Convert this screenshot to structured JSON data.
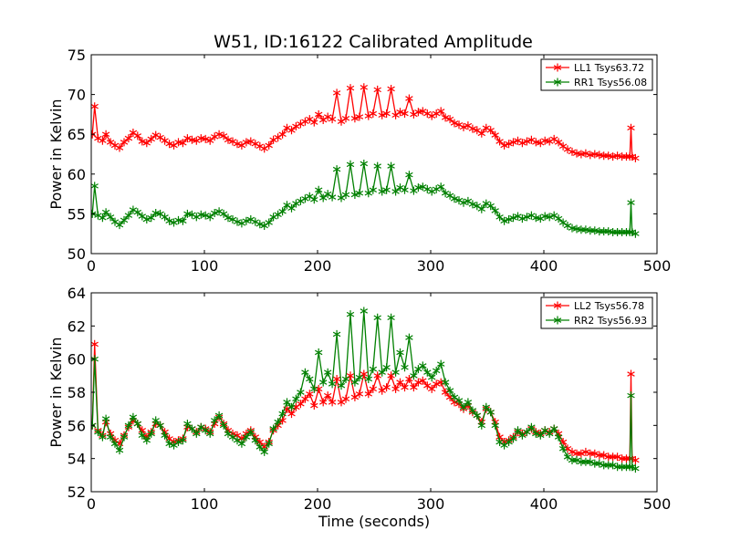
{
  "chart_data": [
    {
      "type": "line",
      "title": "W51, ID:16122 Calibrated Amplitude",
      "xlabel": "",
      "ylabel": "Power in Kelvin",
      "xlim": [
        0,
        500
      ],
      "ylim": [
        50,
        75
      ],
      "xticks": [
        "0",
        "100",
        "200",
        "300",
        "400",
        "500"
      ],
      "yticks": [
        "50",
        "55",
        "60",
        "65",
        "70",
        "75"
      ],
      "legend_position": "top-right",
      "series": [
        {
          "name": "LL1 Tsys63.72",
          "color": "#ff0000",
          "marker": "star",
          "x": [
            1,
            3,
            6,
            10,
            13,
            17,
            21,
            25,
            29,
            33,
            37,
            41,
            45,
            49,
            53,
            57,
            61,
            65,
            69,
            73,
            77,
            81,
            85,
            89,
            93,
            97,
            101,
            105,
            109,
            113,
            117,
            121,
            125,
            129,
            133,
            137,
            141,
            145,
            149,
            153,
            157,
            161,
            165,
            169,
            173,
            177,
            181,
            185,
            189,
            193,
            197,
            201,
            205,
            209,
            213,
            217,
            221,
            225,
            229,
            233,
            237,
            241,
            245,
            249,
            253,
            257,
            261,
            265,
            269,
            273,
            277,
            281,
            285,
            289,
            293,
            297,
            301,
            305,
            309,
            313,
            317,
            321,
            325,
            329,
            333,
            337,
            341,
            345,
            349,
            353,
            357,
            361,
            365,
            369,
            373,
            377,
            381,
            385,
            389,
            393,
            397,
            401,
            405,
            409,
            413,
            417,
            421,
            425,
            429,
            433,
            437,
            441,
            445,
            449,
            453,
            457,
            461,
            465,
            469,
            473,
            476,
            477,
            478,
            481
          ],
          "y": [
            65,
            68.5,
            64.5,
            64.2,
            65,
            64,
            63.6,
            63.3,
            64,
            64.5,
            65.2,
            64.8,
            64.1,
            63.9,
            64.4,
            64.9,
            64.6,
            64.2,
            63.8,
            63.6,
            64.0,
            63.9,
            64.5,
            64.3,
            64.2,
            64.5,
            64.4,
            64.2,
            64.7,
            65.0,
            64.8,
            64.3,
            64.1,
            63.8,
            63.6,
            64.0,
            64.1,
            63.8,
            63.5,
            63.2,
            63.6,
            64.3,
            64.6,
            65.0,
            65.8,
            65.5,
            66.0,
            66.3,
            66.6,
            66.9,
            66.5,
            67.5,
            66.8,
            67.2,
            66.9,
            70.2,
            66.6,
            67.0,
            70.8,
            67.0,
            67.2,
            70.9,
            67.3,
            67.6,
            70.6,
            67.4,
            67.6,
            70.7,
            67.4,
            67.8,
            67.6,
            69.5,
            67.5,
            67.8,
            67.9,
            67.6,
            67.3,
            67.6,
            67.9,
            67.1,
            66.9,
            66.4,
            66.2,
            65.9,
            66.1,
            65.7,
            65.5,
            65.1,
            65.8,
            65.5,
            64.9,
            64.1,
            63.6,
            63.8,
            64.0,
            64.2,
            63.9,
            64.1,
            64.3,
            64.0,
            63.9,
            64.2,
            64.1,
            64.4,
            64.0,
            63.5,
            63.1,
            62.8,
            62.6,
            62.5,
            62.6,
            62.4,
            62.5,
            62.4,
            62.3,
            62.3,
            62.2,
            62.3,
            62.2,
            62.2,
            62.2,
            65.8,
            62.2,
            62.0
          ]
        },
        {
          "name": "RR1 Tsys56.08",
          "color": "#008000",
          "marker": "star",
          "x": [
            1,
            3,
            6,
            10,
            13,
            17,
            21,
            25,
            29,
            33,
            37,
            41,
            45,
            49,
            53,
            57,
            61,
            65,
            69,
            73,
            77,
            81,
            85,
            89,
            93,
            97,
            101,
            105,
            109,
            113,
            117,
            121,
            125,
            129,
            133,
            137,
            141,
            145,
            149,
            153,
            157,
            161,
            165,
            169,
            173,
            177,
            181,
            185,
            189,
            193,
            197,
            201,
            205,
            209,
            213,
            217,
            221,
            225,
            229,
            233,
            237,
            241,
            245,
            249,
            253,
            257,
            261,
            265,
            269,
            273,
            277,
            281,
            285,
            289,
            293,
            297,
            301,
            305,
            309,
            313,
            317,
            321,
            325,
            329,
            333,
            337,
            341,
            345,
            349,
            353,
            357,
            361,
            365,
            369,
            373,
            377,
            381,
            385,
            389,
            393,
            397,
            401,
            405,
            409,
            413,
            417,
            421,
            425,
            429,
            433,
            437,
            441,
            445,
            449,
            453,
            457,
            461,
            465,
            469,
            473,
            476,
            477,
            478,
            481
          ],
          "y": [
            55,
            58.5,
            54.8,
            54.5,
            55.2,
            54.6,
            54.0,
            53.6,
            54.2,
            54.8,
            55.5,
            55.2,
            54.7,
            54.3,
            54.5,
            55.1,
            55.0,
            54.6,
            54.1,
            53.9,
            54.2,
            54.1,
            55.0,
            54.9,
            54.6,
            54.9,
            54.8,
            54.6,
            55.1,
            55.3,
            55.0,
            54.5,
            54.3,
            54.0,
            53.8,
            54.1,
            54.3,
            54.0,
            53.7,
            53.5,
            53.9,
            54.6,
            54.9,
            55.3,
            56.1,
            55.7,
            56.3,
            56.6,
            56.9,
            57.2,
            56.8,
            58.0,
            57.0,
            57.5,
            57.1,
            60.6,
            57.0,
            57.4,
            61.2,
            57.4,
            57.6,
            61.3,
            57.6,
            58.0,
            61.0,
            57.8,
            58.0,
            61.0,
            57.8,
            58.3,
            58.0,
            59.9,
            57.9,
            58.3,
            58.4,
            58.1,
            57.8,
            58.1,
            58.4,
            57.6,
            57.3,
            56.9,
            56.7,
            56.4,
            56.6,
            56.2,
            56.0,
            55.6,
            56.3,
            56.0,
            55.4,
            54.6,
            54.1,
            54.3,
            54.5,
            54.7,
            54.4,
            54.6,
            54.8,
            54.5,
            54.4,
            54.7,
            54.6,
            54.8,
            54.4,
            53.9,
            53.5,
            53.2,
            53.1,
            53.0,
            53.0,
            52.9,
            52.9,
            52.8,
            52.8,
            52.8,
            52.7,
            52.7,
            52.7,
            52.7,
            52.7,
            56.4,
            52.7,
            52.5
          ]
        }
      ]
    },
    {
      "type": "line",
      "title": "",
      "xlabel": "Time (seconds)",
      "ylabel": "Power in Kelvin",
      "xlim": [
        0,
        500
      ],
      "ylim": [
        52,
        64
      ],
      "xticks": [
        "0",
        "100",
        "200",
        "300",
        "400",
        "500"
      ],
      "yticks": [
        "52",
        "54",
        "56",
        "58",
        "60",
        "62",
        "64"
      ],
      "legend_position": "top-right",
      "series": [
        {
          "name": "LL2 Tsys56.78",
          "color": "#ff0000",
          "marker": "star",
          "x": [
            1,
            3,
            6,
            10,
            13,
            17,
            21,
            25,
            29,
            33,
            37,
            41,
            45,
            49,
            53,
            57,
            61,
            65,
            69,
            73,
            77,
            81,
            85,
            89,
            93,
            97,
            101,
            105,
            109,
            113,
            117,
            121,
            125,
            129,
            133,
            137,
            141,
            145,
            149,
            153,
            157,
            161,
            165,
            169,
            173,
            177,
            181,
            185,
            189,
            193,
            197,
            201,
            205,
            209,
            213,
            217,
            221,
            225,
            229,
            233,
            237,
            241,
            245,
            249,
            253,
            257,
            261,
            265,
            269,
            273,
            277,
            281,
            285,
            289,
            293,
            297,
            301,
            305,
            309,
            313,
            317,
            321,
            325,
            329,
            333,
            337,
            341,
            345,
            349,
            353,
            357,
            361,
            365,
            369,
            373,
            377,
            381,
            385,
            389,
            393,
            397,
            401,
            405,
            409,
            413,
            417,
            421,
            425,
            429,
            433,
            437,
            441,
            445,
            449,
            453,
            457,
            461,
            465,
            469,
            473,
            476,
            477,
            478,
            481
          ],
          "y": [
            56,
            60.9,
            55.7,
            55.4,
            56.2,
            55.5,
            55.1,
            54.9,
            55.4,
            55.9,
            56.3,
            56.1,
            55.7,
            55.3,
            55.6,
            56.1,
            56.0,
            55.6,
            55.2,
            55.0,
            55.1,
            55.2,
            55.9,
            55.8,
            55.6,
            55.9,
            55.8,
            55.6,
            56.1,
            56.5,
            56.1,
            55.7,
            55.5,
            55.4,
            55.2,
            55.5,
            55.7,
            55.3,
            55.0,
            54.7,
            55.0,
            55.7,
            56.0,
            56.3,
            57.0,
            56.7,
            57.1,
            57.3,
            57.6,
            57.9,
            57.2,
            58.2,
            57.4,
            57.8,
            57.4,
            58.8,
            57.4,
            57.6,
            59.0,
            57.7,
            57.9,
            59.1,
            57.9,
            58.2,
            59.0,
            58.1,
            58.3,
            59.0,
            58.2,
            58.6,
            58.3,
            58.8,
            58.3,
            58.6,
            58.7,
            58.4,
            58.2,
            58.5,
            58.6,
            58.0,
            57.7,
            57.4,
            57.3,
            57.0,
            57.2,
            56.8,
            56.6,
            56.2,
            57.0,
            56.8,
            56.2,
            55.3,
            55.0,
            55.1,
            55.3,
            55.6,
            55.5,
            55.6,
            55.8,
            55.6,
            55.5,
            55.7,
            55.6,
            55.8,
            55.5,
            55.0,
            54.6,
            54.4,
            54.3,
            54.3,
            54.4,
            54.3,
            54.3,
            54.2,
            54.2,
            54.1,
            54.1,
            54.1,
            54.0,
            54.0,
            54.0,
            59.1,
            54.0,
            53.9
          ]
        },
        {
          "name": "RR2 Tsys56.93",
          "color": "#008000",
          "marker": "star",
          "x": [
            1,
            3,
            6,
            10,
            13,
            17,
            21,
            25,
            29,
            33,
            37,
            41,
            45,
            49,
            53,
            57,
            61,
            65,
            69,
            73,
            77,
            81,
            85,
            89,
            93,
            97,
            101,
            105,
            109,
            113,
            117,
            121,
            125,
            129,
            133,
            137,
            141,
            145,
            149,
            153,
            157,
            161,
            165,
            169,
            173,
            177,
            181,
            185,
            189,
            193,
            197,
            201,
            205,
            209,
            213,
            217,
            221,
            225,
            229,
            233,
            237,
            241,
            245,
            249,
            253,
            257,
            261,
            265,
            269,
            273,
            277,
            281,
            285,
            289,
            293,
            297,
            301,
            305,
            309,
            313,
            317,
            321,
            325,
            329,
            333,
            337,
            341,
            345,
            349,
            353,
            357,
            361,
            365,
            369,
            373,
            377,
            381,
            385,
            389,
            393,
            397,
            401,
            405,
            409,
            413,
            417,
            421,
            425,
            429,
            433,
            437,
            441,
            445,
            449,
            453,
            457,
            461,
            465,
            469,
            473,
            476,
            477,
            478,
            481
          ],
          "y": [
            56,
            60.0,
            55.6,
            55.3,
            56.4,
            55.3,
            54.9,
            54.5,
            55.3,
            56.0,
            56.5,
            56.1,
            55.4,
            55.1,
            55.5,
            56.3,
            56.0,
            55.4,
            54.9,
            54.8,
            55.0,
            55.1,
            56.1,
            55.8,
            55.5,
            55.9,
            55.7,
            55.5,
            56.3,
            56.6,
            56.0,
            55.5,
            55.3,
            55.1,
            54.9,
            55.3,
            55.6,
            55.1,
            54.7,
            54.4,
            54.9,
            55.8,
            56.2,
            56.7,
            57.4,
            57.1,
            57.6,
            58.0,
            59.2,
            58.8,
            58.2,
            60.4,
            58.6,
            59.2,
            58.5,
            61.5,
            58.4,
            58.8,
            62.7,
            58.6,
            58.9,
            62.9,
            58.8,
            59.4,
            62.5,
            59.2,
            59.5,
            62.5,
            59.2,
            60.4,
            59.5,
            61.3,
            59.0,
            59.4,
            59.6,
            59.2,
            58.9,
            59.3,
            59.7,
            58.6,
            58.1,
            57.7,
            57.5,
            57.1,
            57.4,
            56.9,
            56.6,
            56.0,
            57.1,
            56.8,
            56.0,
            55.0,
            54.8,
            55.0,
            55.2,
            55.7,
            55.4,
            55.6,
            55.9,
            55.5,
            55.4,
            55.7,
            55.5,
            55.8,
            55.3,
            54.6,
            54.1,
            53.9,
            53.9,
            53.8,
            53.8,
            53.8,
            53.7,
            53.7,
            53.6,
            53.6,
            53.6,
            53.5,
            53.5,
            53.5,
            53.5,
            57.8,
            53.5,
            53.4
          ]
        }
      ]
    }
  ]
}
